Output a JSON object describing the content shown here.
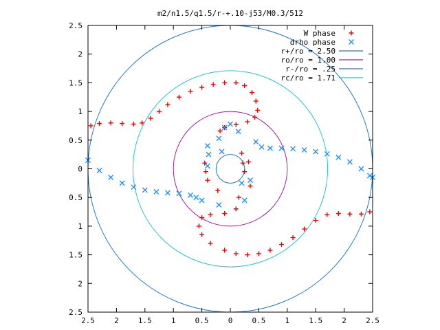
{
  "chart_data": {
    "type": "scatter",
    "title": "m2/n1.5/q1.5/r-+.10-j53/M0.3/512",
    "xlabel": "",
    "ylabel": "",
    "xlim": [
      -2.5,
      2.5
    ],
    "ylim": [
      -2.5,
      2.5
    ],
    "grid": false,
    "legend_position": "top-right",
    "x_ticks": [
      -2.5,
      -2,
      -1.5,
      -1,
      -0.5,
      0,
      0.5,
      1,
      1.5,
      2,
      2.5
    ],
    "x_tick_labels": [
      "2.5",
      "2",
      "1.5",
      "1",
      "0.5",
      "0",
      "0.5",
      "1",
      "1.5",
      "2",
      "2.5"
    ],
    "y_ticks": [
      2.5,
      2,
      1.5,
      1,
      0.5,
      0,
      -0.5,
      -1,
      -1.5,
      -2,
      -2.5
    ],
    "y_tick_labels": [
      "2.5",
      "2",
      "1.5",
      "1",
      "0.5",
      "0",
      "0.5",
      "1",
      "1.5",
      "2",
      "2.5"
    ],
    "series": [
      {
        "name": "W phase",
        "marker": "+",
        "color": "#ee0000",
        "points": [
          [
            -2.45,
            0.75
          ],
          [
            -2.3,
            0.79
          ],
          [
            -2.1,
            0.8
          ],
          [
            -1.9,
            0.79
          ],
          [
            -1.7,
            0.78
          ],
          [
            -1.55,
            0.8
          ],
          [
            -1.4,
            0.88
          ],
          [
            -1.25,
            1.0
          ],
          [
            -1.1,
            1.12
          ],
          [
            -0.9,
            1.25
          ],
          [
            -0.7,
            1.35
          ],
          [
            -0.5,
            1.42
          ],
          [
            -0.3,
            1.47
          ],
          [
            -0.1,
            1.5
          ],
          [
            0.1,
            1.5
          ],
          [
            0.25,
            1.45
          ],
          [
            0.38,
            1.33
          ],
          [
            0.45,
            1.18
          ],
          [
            0.48,
            1.02
          ],
          [
            0.43,
            0.9
          ],
          [
            0.3,
            0.82
          ],
          [
            0.1,
            0.77
          ],
          [
            -0.1,
            0.72
          ],
          [
            -0.18,
            0.66
          ],
          [
            -0.45,
            0.1
          ],
          [
            -0.43,
            -0.05
          ],
          [
            -0.4,
            -0.2
          ],
          [
            -0.22,
            -0.38
          ],
          [
            0.2,
            0.27
          ],
          [
            0.22,
            0.1
          ],
          [
            0.25,
            -0.05
          ],
          [
            0.32,
            0.12
          ],
          [
            0.35,
            -0.3
          ],
          [
            0.15,
            -0.5
          ],
          [
            0.1,
            -0.7
          ],
          [
            -0.1,
            -0.78
          ],
          [
            -0.35,
            -0.8
          ],
          [
            -0.5,
            -0.85
          ],
          [
            -0.55,
            -1.0
          ],
          [
            -0.5,
            -1.15
          ],
          [
            -0.35,
            -1.3
          ],
          [
            -0.1,
            -1.42
          ],
          [
            0.1,
            -1.48
          ],
          [
            0.3,
            -1.5
          ],
          [
            0.5,
            -1.48
          ],
          [
            0.7,
            -1.42
          ],
          [
            0.9,
            -1.32
          ],
          [
            1.1,
            -1.2
          ],
          [
            1.3,
            -1.05
          ],
          [
            1.5,
            -0.9
          ],
          [
            1.7,
            -0.8
          ],
          [
            1.9,
            -0.78
          ],
          [
            2.1,
            -0.79
          ],
          [
            2.3,
            -0.79
          ],
          [
            2.45,
            -0.75
          ]
        ]
      },
      {
        "name": "drho phase",
        "marker": "x",
        "color": "#1e90ff",
        "points": [
          [
            -2.5,
            0.15
          ],
          [
            -2.3,
            -0.03
          ],
          [
            -2.1,
            -0.15
          ],
          [
            -1.9,
            -0.25
          ],
          [
            -1.7,
            -0.32
          ],
          [
            -1.5,
            -0.37
          ],
          [
            -1.3,
            -0.4
          ],
          [
            -1.1,
            -0.42
          ],
          [
            -0.9,
            -0.43
          ],
          [
            -0.7,
            -0.46
          ],
          [
            -0.6,
            -0.5
          ],
          [
            -0.5,
            -0.55
          ],
          [
            -0.4,
            0.4
          ],
          [
            -0.38,
            0.25
          ],
          [
            -0.4,
            0.05
          ],
          [
            -0.2,
            0.53
          ],
          [
            -0.15,
            0.3
          ],
          [
            -0.1,
            0.72
          ],
          [
            0.0,
            0.78
          ],
          [
            0.14,
            0.65
          ],
          [
            -0.2,
            -0.63
          ],
          [
            0.2,
            -0.25
          ],
          [
            0.25,
            -0.55
          ],
          [
            0.35,
            -0.2
          ],
          [
            0.45,
            0.47
          ],
          [
            0.55,
            0.38
          ],
          [
            0.7,
            0.36
          ],
          [
            0.9,
            0.36
          ],
          [
            1.1,
            0.35
          ],
          [
            1.3,
            0.33
          ],
          [
            1.5,
            0.3
          ],
          [
            1.7,
            0.26
          ],
          [
            1.9,
            0.2
          ],
          [
            2.1,
            0.12
          ],
          [
            2.3,
            0.0
          ],
          [
            2.45,
            -0.12
          ],
          [
            2.5,
            -0.15
          ]
        ]
      }
    ],
    "circles": [
      {
        "name": "r+/ro = 2.50",
        "radius": 2.5,
        "color": "#1e78c8"
      },
      {
        "name": "ro/ro = 1.00",
        "radius": 1.0,
        "color": "#a020a0"
      },
      {
        "name": "r-/ro = .25",
        "radius": 0.25,
        "color": "#1e78c8"
      },
      {
        "name": "rc/ro = 1.71",
        "radius": 1.71,
        "color": "#20c8c8"
      }
    ]
  }
}
